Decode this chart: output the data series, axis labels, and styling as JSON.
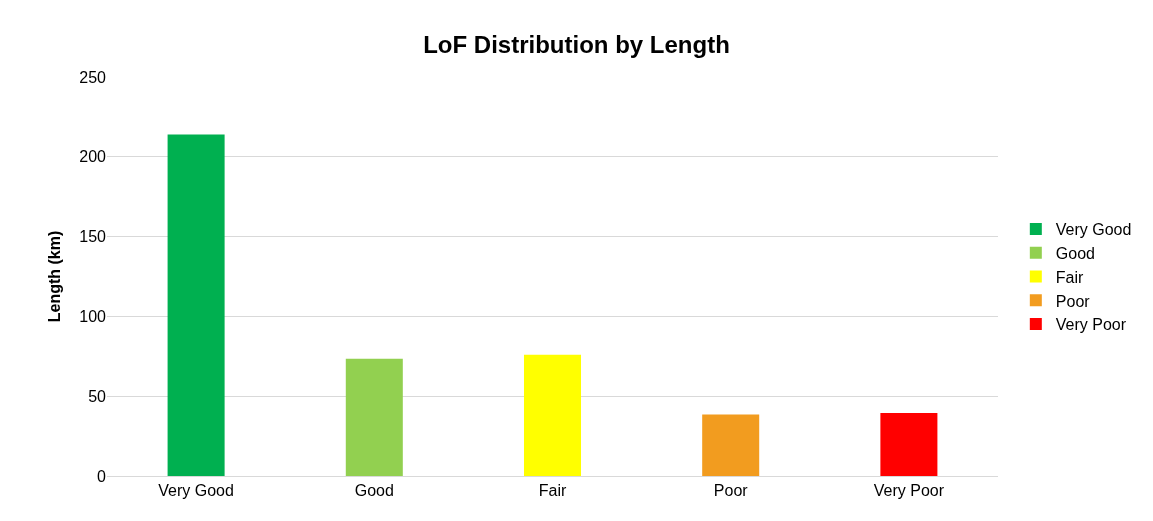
{
  "chart_data": {
    "type": "bar",
    "title": "LoF Distribution by Length",
    "ylabel": "Length (km)",
    "categories": [
      "Very Good",
      "Good",
      "Fair",
      "Poor",
      "Very Poor"
    ],
    "series": [
      {
        "name": "Very Good",
        "color": "#00b050",
        "values": [
          214,
          null,
          null,
          null,
          null
        ]
      },
      {
        "name": "Good",
        "color": "#92d050",
        "values": [
          null,
          73.5,
          null,
          null,
          null
        ]
      },
      {
        "name": "Fair",
        "color": "#ffff00",
        "values": [
          null,
          null,
          76,
          null,
          null
        ]
      },
      {
        "name": "Poor",
        "color": "#f29c1f",
        "values": [
          null,
          null,
          null,
          38.5,
          null
        ]
      },
      {
        "name": "Very Poor",
        "color": "#ff0000",
        "values": [
          null,
          null,
          null,
          null,
          39.5
        ]
      }
    ],
    "ylim": [
      0,
      250
    ],
    "yticks": [
      0,
      50,
      100,
      150,
      200,
      250
    ],
    "grid": "y",
    "legend": "right"
  }
}
